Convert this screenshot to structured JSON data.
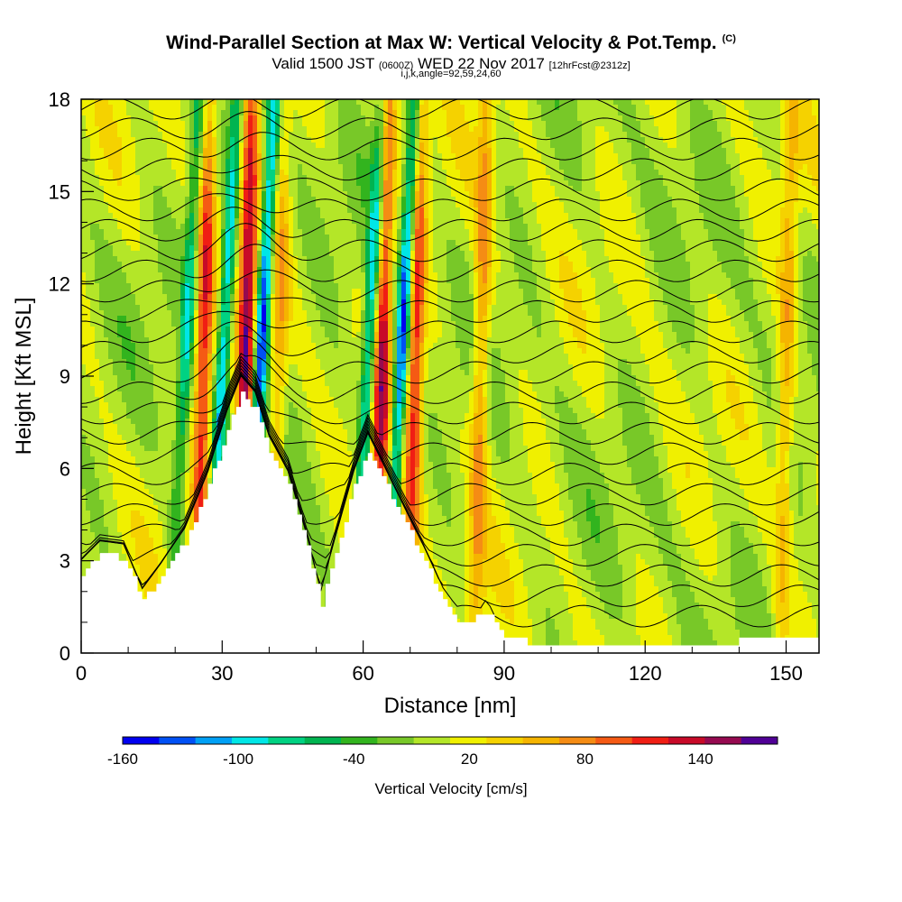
{
  "header": {
    "title": "Wind-Parallel Section at Max W: Vertical Velocity & Pot.Temp.",
    "copyright": "(C)",
    "valid_prefix": "Valid 1500 JST",
    "valid_utc": "(0600Z)",
    "valid_date": "WED 22 Nov 2017",
    "forecast": "[12hrFcst@2312z]",
    "indices": "i,j,k,angle=92,59,24,60"
  },
  "chart_data": {
    "type": "heatmap",
    "title": "Wind-Parallel Section at Max W: Vertical Velocity & Pot.Temp.",
    "xlabel": "Distance [nm]",
    "ylabel": "Height [Kft MSL]",
    "xlim": [
      0,
      157
    ],
    "ylim": [
      0,
      18
    ],
    "xticks": [
      0,
      30,
      60,
      90,
      120,
      150
    ],
    "yticks": [
      0,
      3,
      6,
      9,
      12,
      15,
      18
    ],
    "terrain": {
      "distance_nm": [
        0,
        4,
        9,
        13,
        17,
        22,
        27,
        31,
        34,
        37,
        40,
        44,
        48,
        51,
        54,
        58,
        61,
        65,
        69,
        73,
        77,
        81,
        86,
        90,
        95,
        100,
        110,
        120,
        130,
        139,
        142,
        157
      ],
      "height_kft": [
        2.6,
        3.2,
        3.1,
        1.7,
        2.5,
        3.6,
        5.4,
        7.3,
        8.4,
        7.9,
        6.5,
        5.4,
        3.4,
        1.6,
        3.3,
        5.4,
        6.6,
        5.4,
        4.2,
        3.0,
        1.7,
        0.9,
        1.3,
        0.6,
        0.35,
        0.35,
        0.35,
        0.35,
        0.35,
        0.35,
        0.6,
        0.6
      ]
    },
    "updraft_cores": [
      {
        "distance_nm": 26,
        "w_cms": 120
      },
      {
        "distance_nm": 35,
        "w_cms": 160
      },
      {
        "distance_nm": 42,
        "w_cms": 60
      },
      {
        "distance_nm": 64,
        "w_cms": 140
      },
      {
        "distance_nm": 71,
        "w_cms": 120
      },
      {
        "distance_nm": 85,
        "w_cms": 80
      },
      {
        "distance_nm": 150,
        "w_cms": 60
      }
    ],
    "downdraft_cores": [
      {
        "distance_nm": 30,
        "w_cms": -120
      },
      {
        "distance_nm": 38,
        "w_cms": -160
      },
      {
        "distance_nm": 61,
        "w_cms": -120
      },
      {
        "distance_nm": 68,
        "w_cms": -160
      },
      {
        "distance_nm": 22,
        "w_cms": -90
      }
    ],
    "colorbar": {
      "label": "Vertical Velocity [cm/s]",
      "tick_labels": [
        "-160",
        "-100",
        "-40",
        "20",
        "80",
        "140"
      ],
      "tick_values": [
        -160,
        -100,
        -40,
        20,
        80,
        140
      ],
      "min": -160,
      "max": 180,
      "step": 20,
      "colors": [
        "#0000f0",
        "#0050f5",
        "#00a0f5",
        "#00e6e6",
        "#00d282",
        "#00b450",
        "#32b41e",
        "#78c828",
        "#b4e628",
        "#f0f000",
        "#f5d200",
        "#f5b400",
        "#f58c14",
        "#f55a14",
        "#f01e14",
        "#c80a28",
        "#960a50",
        "#500096"
      ]
    },
    "contour_variable": "Pot.Temp."
  }
}
